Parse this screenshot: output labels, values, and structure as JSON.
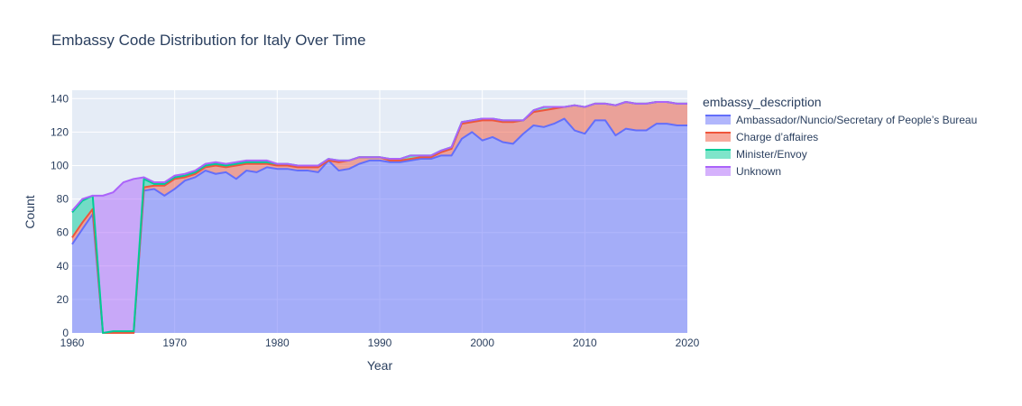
{
  "chart_data": {
    "type": "area",
    "title": "Embassy Code Distribution for Italy Over Time",
    "xlabel": "Year",
    "ylabel": "Count",
    "xlim": [
      1960,
      2020
    ],
    "ylim": [
      0,
      145
    ],
    "x_ticks": [
      1960,
      1970,
      1980,
      1990,
      2000,
      2010,
      2020
    ],
    "y_ticks": [
      0,
      20,
      40,
      60,
      80,
      100,
      120,
      140
    ],
    "legend_title": "embassy_description",
    "legend_position": "right",
    "plot_bg": "#e5ecf6",
    "x": [
      1960,
      1961,
      1962,
      1963,
      1964,
      1965,
      1966,
      1967,
      1968,
      1969,
      1970,
      1971,
      1972,
      1973,
      1974,
      1975,
      1976,
      1977,
      1978,
      1979,
      1980,
      1981,
      1982,
      1983,
      1984,
      1985,
      1986,
      1987,
      1988,
      1989,
      1990,
      1991,
      1992,
      1993,
      1994,
      1995,
      1996,
      1997,
      1998,
      1999,
      2000,
      2001,
      2002,
      2003,
      2004,
      2005,
      2006,
      2007,
      2008,
      2009,
      2010,
      2011,
      2012,
      2013,
      2014,
      2015,
      2016,
      2017,
      2018,
      2019,
      2020
    ],
    "series": [
      {
        "name": "Ambassador/Nuncio/Secretary of People's Bureau",
        "color": "#636efa",
        "values": [
          53,
          62,
          71,
          0,
          0,
          0,
          0,
          85,
          86,
          82,
          86,
          91,
          93,
          97,
          95,
          96,
          92,
          97,
          96,
          99,
          98,
          98,
          97,
          97,
          96,
          103,
          97,
          98,
          101,
          103,
          103,
          102,
          102,
          103,
          104,
          104,
          106,
          106,
          116,
          120,
          115,
          117,
          114,
          113,
          119,
          124,
          123,
          125,
          128,
          121,
          119,
          127,
          127,
          118,
          122,
          121,
          121,
          125,
          125,
          124,
          124
        ]
      },
      {
        "name": "Charge d'affaires",
        "color": "#ef553b",
        "values": [
          4,
          4,
          3,
          0,
          0,
          0,
          0,
          2,
          2,
          6,
          6,
          2,
          2,
          2,
          5,
          3,
          8,
          4,
          5,
          2,
          2,
          2,
          2,
          2,
          3,
          0,
          5,
          5,
          4,
          2,
          2,
          1,
          1,
          1,
          1,
          1,
          2,
          4,
          9,
          6,
          12,
          10,
          12,
          13,
          8,
          8,
          10,
          9,
          7,
          15,
          16,
          10,
          10,
          18,
          16,
          16,
          16,
          13,
          13,
          13,
          13
        ]
      },
      {
        "name": "Minister/Envoy",
        "color": "#00cc96",
        "values": [
          15,
          13,
          8,
          0,
          1,
          1,
          1,
          5,
          1,
          1,
          1,
          1,
          1,
          1,
          1,
          1,
          1,
          1,
          1,
          1,
          1,
          1,
          1,
          1,
          1,
          1,
          1,
          0,
          0,
          0,
          0,
          1,
          1,
          2,
          1,
          1,
          1,
          1,
          1,
          1,
          1,
          1,
          1,
          1,
          0,
          1,
          2,
          1,
          0,
          0,
          0,
          0,
          0,
          0,
          0,
          0,
          0,
          0,
          0,
          0,
          0
        ]
      },
      {
        "name": "Unknown",
        "color": "#ab63fa",
        "values": [
          1,
          1,
          0,
          82,
          83,
          89,
          91,
          1,
          1,
          1,
          1,
          1,
          1,
          1,
          1,
          1,
          1,
          1,
          1,
          1,
          0,
          0,
          0,
          0,
          0,
          0,
          0,
          0,
          0,
          0,
          0,
          0,
          0,
          0,
          0,
          0,
          0,
          0,
          0,
          0,
          0,
          0,
          0,
          0,
          0,
          0,
          0,
          0,
          0,
          0,
          0,
          0,
          0,
          0,
          0,
          0,
          0,
          0,
          0,
          0,
          0
        ]
      }
    ],
    "legend_labels": [
      "Ambassador/Nuncio/Secretary of People’s Bureau",
      "Charge d’affaires",
      "Minister/Envoy",
      "Unknown"
    ]
  }
}
